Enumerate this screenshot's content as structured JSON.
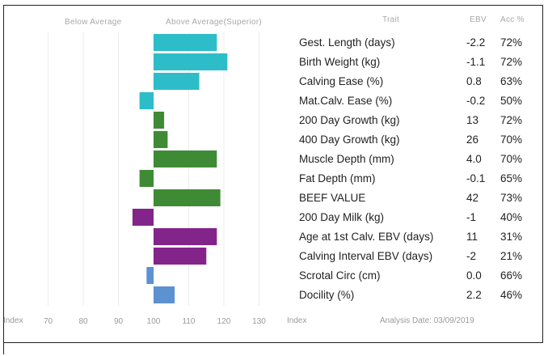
{
  "header": {
    "below_average": "Below Average",
    "above_average": "Above Average(Superior)",
    "trait": "Trait",
    "ebv": "EBV",
    "acc": "Acc %"
  },
  "footer": {
    "index_left": "Index",
    "index_right": "Index",
    "analysis_date": "Analysis Date: 03/09/2019"
  },
  "rows": [
    {
      "trait": "Gest. Length (days)",
      "ebv": "-2.2",
      "acc": "72%"
    },
    {
      "trait": "Birth Weight (kg)",
      "ebv": "-1.1",
      "acc": "72%"
    },
    {
      "trait": "Calving Ease (%)",
      "ebv": "0.8",
      "acc": "63%"
    },
    {
      "trait": "Mat.Calv. Ease (%)",
      "ebv": "-0.2",
      "acc": "50%"
    },
    {
      "trait": "200 Day Growth (kg)",
      "ebv": "13",
      "acc": "72%"
    },
    {
      "trait": "400 Day Growth (kg)",
      "ebv": "26",
      "acc": "70%"
    },
    {
      "trait": "Muscle Depth (mm)",
      "ebv": "4.0",
      "acc": "70%"
    },
    {
      "trait": "Fat Depth (mm)",
      "ebv": "-0.1",
      "acc": "65%"
    },
    {
      "trait": "BEEF VALUE",
      "ebv": "42",
      "acc": "73%"
    },
    {
      "trait": "200 Day Milk (kg)",
      "ebv": "-1",
      "acc": "40%"
    },
    {
      "trait": "Age at 1st Calv. EBV (days)",
      "ebv": "11",
      "acc": "31%"
    },
    {
      "trait": "Calving Interval EBV (days)",
      "ebv": "-2",
      "acc": "21%"
    },
    {
      "trait": "Scrotal Circ (cm)",
      "ebv": "0.0",
      "acc": "66%"
    },
    {
      "trait": "Docility (%)",
      "ebv": "2.2",
      "acc": "46%"
    }
  ],
  "chart_data": {
    "type": "bar",
    "orientation": "horizontal",
    "baseline": 100,
    "xlim": [
      60,
      135
    ],
    "x_ticks": [
      70,
      80,
      90,
      100,
      110,
      120,
      130
    ],
    "categories": [
      "Gest. Length (days)",
      "Birth Weight (kg)",
      "Calving Ease (%)",
      "Mat.Calv. Ease (%)",
      "200 Day Growth (kg)",
      "400 Day Growth (kg)",
      "Muscle Depth (mm)",
      "Fat Depth (mm)",
      "BEEF VALUE",
      "200 Day Milk (kg)",
      "Age at 1st Calv. EBV (days)",
      "Calving Interval EBV (days)",
      "Scrotal Circ (cm)",
      "Docility (%)"
    ],
    "values": [
      118,
      121,
      113,
      96,
      103,
      104,
      118,
      96,
      119,
      94,
      118,
      115,
      98,
      106
    ],
    "colors": [
      "#2dbdc9",
      "#2dbdc9",
      "#2dbdc9",
      "#2dbdc9",
      "#3f8b35",
      "#3f8b35",
      "#3f8b35",
      "#3f8b35",
      "#3f8b35",
      "#83248b",
      "#83248b",
      "#83248b",
      "#5c91d2",
      "#5c91d2"
    ],
    "grid": true
  }
}
